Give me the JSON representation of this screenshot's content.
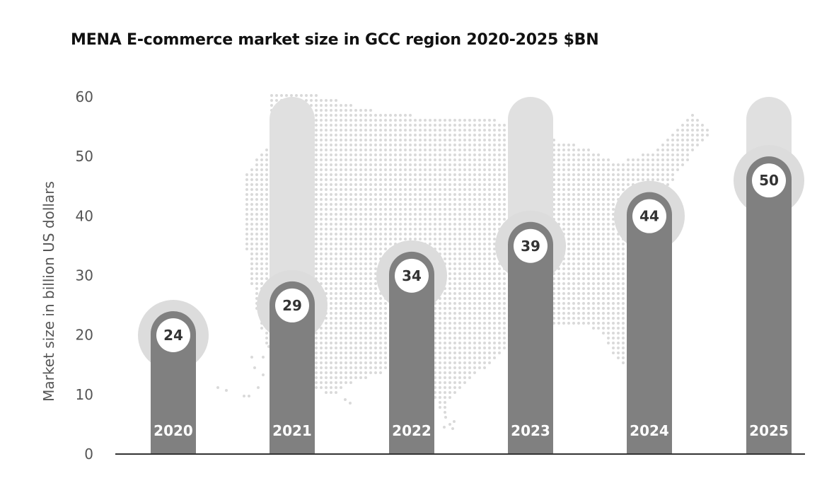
{
  "chart_data": {
    "type": "bar",
    "title": "MENA E-commerce market size in GCC region 2020-2025 $BN",
    "xlabel": "",
    "ylabel": "Market size in billion US dollars",
    "categories": [
      "2020",
      "2021",
      "2022",
      "2023",
      "2024",
      "2025"
    ],
    "values": [
      24,
      29,
      34,
      39,
      44,
      50
    ],
    "value_labels": [
      "24",
      "29",
      "34",
      "39",
      "44",
      "50"
    ],
    "ylim": [
      0,
      60
    ],
    "yticks": [
      0,
      10,
      20,
      30,
      40,
      50,
      60
    ],
    "ytick_labels": [
      "0",
      "10",
      "20",
      "30",
      "40",
      "50",
      "60"
    ],
    "ghost_bar_top_value": 60,
    "ghost_bar_categories": [
      "2021",
      "2023",
      "2025"
    ],
    "grid": false,
    "legend": "none",
    "background_graphic": "dotted map",
    "colors": {
      "bar": "#808080",
      "ghost_bar": "#e0e0e0",
      "halo": "#dcdcdc",
      "marker_fill": "#ffffff",
      "map_dots": "#d9d9d9",
      "axis": "#333333"
    }
  }
}
